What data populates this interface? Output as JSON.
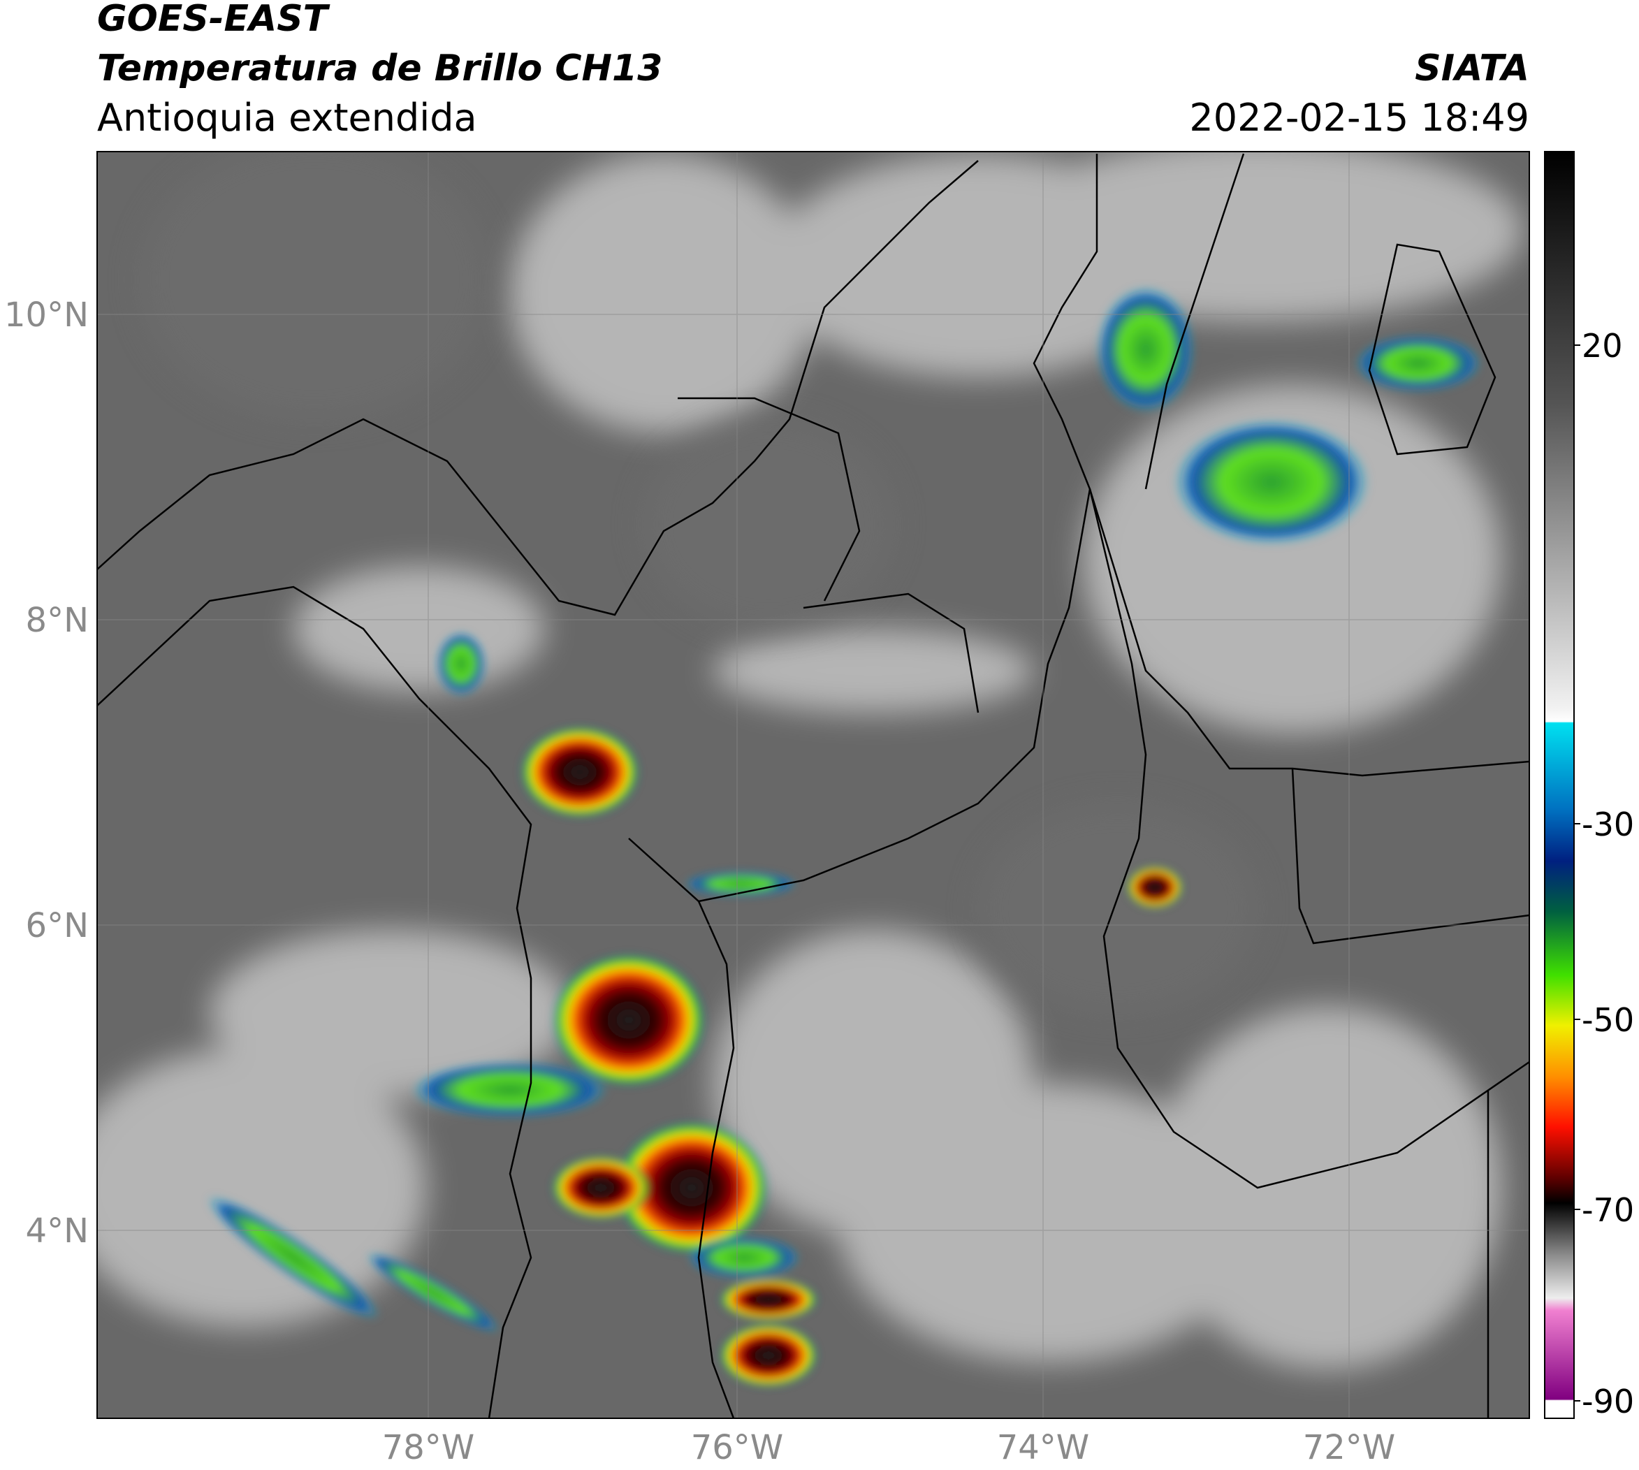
{
  "header": {
    "title_line1": "GOES-EAST",
    "title_line2": "Temperatura de Brillo CH13",
    "subtitle": "Antioquia extendida",
    "source": "SIATA",
    "datetime": "2022-02-15 18:49"
  },
  "map": {
    "lat_labels": [
      "10°N",
      "8°N",
      "6°N",
      "4°N"
    ],
    "lon_labels": [
      "78°W",
      "76°W",
      "74°W",
      "72°W"
    ]
  },
  "colorbar": {
    "labels": [
      20,
      -30,
      -50,
      -70,
      -90
    ]
  }
}
